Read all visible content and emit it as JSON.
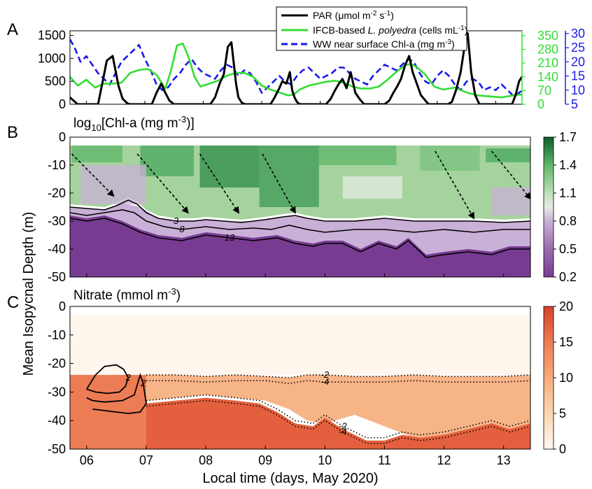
{
  "figure": {
    "panel_letters": [
      "A",
      "B",
      "C"
    ],
    "x_axis_label": "Local time (days, May 2020)",
    "y_axis_label": "Mean Isopycnal Depth (m)",
    "panel_b_title": "log",
    "panel_b_title_sub": "10",
    "panel_b_title_rest": "[Chl-a (mg m",
    "panel_b_title_sup": "-3",
    "panel_b_title_end": ")]",
    "panel_c_title": "Nitrate (mmol m",
    "panel_c_title_sup": "-3",
    "panel_c_title_end": ")"
  },
  "legend": {
    "par_label": "PAR (",
    "par_mu": "μ",
    "par_unit": "mol m",
    "par_sup1": "-2",
    "par_mid": " s",
    "par_sup2": "-1",
    "par_end": ")",
    "ifcb_label": "IFCB-based ",
    "ifcb_species": "L. polyedra",
    "ifcb_unit": " (cells mL",
    "ifcb_sup": "-1",
    "ifcb_end": ")",
    "ww_label": "WW near surface Chl-a (mg m",
    "ww_sup": "-3",
    "ww_end": ")"
  },
  "colors": {
    "par": "#000000",
    "ifcb": "#33dd33",
    "ww": "#1a1aee",
    "chl_low": "#773b92",
    "chl_high": "#0b5d2a",
    "nitrate_low": "#fff7ee",
    "nitrate_high": "#d6402a"
  },
  "chart_data": [
    {
      "id": "panel-A",
      "type": "line",
      "x_ticks": [
        "06",
        "07",
        "08",
        "09",
        "10",
        "11",
        "12",
        "13"
      ],
      "xlim": [
        5.72,
        13.45
      ],
      "y_left_ticks": [
        "0",
        "500",
        "1000",
        "1500"
      ],
      "ylim_left": [
        0,
        1600
      ],
      "y_right1_ticks": [
        "0",
        "70",
        "140",
        "210",
        "280",
        "350"
      ],
      "ylim_right1": [
        0,
        375
      ],
      "y_right2_ticks": [
        "5",
        "10",
        "15",
        "20",
        "25",
        "30"
      ],
      "ylim_right2": [
        5,
        31
      ],
      "series": [
        {
          "name": "PAR",
          "axis": "left",
          "x": [
            5.72,
            5.85,
            5.95,
            6.05,
            6.12,
            6.2,
            6.28,
            6.35,
            6.45,
            6.55,
            6.62,
            6.7,
            6.75,
            6.85,
            6.95,
            7.05,
            7.12,
            7.2,
            7.28,
            7.35,
            7.42,
            7.5,
            7.58,
            7.65,
            7.75,
            7.85,
            7.95,
            8.05,
            8.12,
            8.2,
            8.28,
            8.35,
            8.42,
            8.48,
            8.52,
            8.56,
            8.6,
            8.66,
            8.72,
            8.85,
            9.0,
            9.08,
            9.15,
            9.22,
            9.3,
            9.35,
            9.42,
            9.48,
            9.52,
            9.56,
            9.6,
            9.65,
            9.72,
            9.85,
            10.0,
            10.1,
            10.18,
            10.25,
            10.32,
            10.38,
            10.45,
            10.52,
            10.6,
            10.68,
            10.75,
            10.85,
            11.0,
            11.1,
            11.18,
            11.25,
            11.32,
            11.38,
            11.45,
            11.52,
            11.58,
            11.65,
            11.72,
            11.85,
            12.0,
            12.1,
            12.18,
            12.25,
            12.32,
            12.4,
            12.46,
            12.52,
            12.58,
            12.65,
            12.72,
            12.85,
            13.0,
            13.15,
            13.28,
            13.34,
            13.4,
            13.45
          ],
          "values": [
            150,
            0,
            0,
            0,
            0,
            0,
            500,
            950,
            1050,
            400,
            120,
            20,
            0,
            0,
            0,
            0,
            0,
            250,
            450,
            250,
            80,
            0,
            0,
            0,
            0,
            0,
            0,
            0,
            0,
            150,
            450,
            650,
            1250,
            1350,
            900,
            450,
            150,
            30,
            0,
            0,
            0,
            0,
            0,
            150,
            350,
            500,
            450,
            700,
            300,
            150,
            50,
            0,
            0,
            0,
            0,
            0,
            120,
            300,
            450,
            550,
            350,
            700,
            250,
            100,
            0,
            0,
            0,
            0,
            80,
            250,
            400,
            550,
            850,
            1050,
            700,
            450,
            200,
            0,
            0,
            0,
            0,
            50,
            300,
            700,
            1200,
            1550,
            700,
            200,
            0,
            0,
            0,
            0,
            0,
            200,
            500,
            600
          ]
        },
        {
          "name": "IFCB-based L. polyedra",
          "axis": "right1",
          "x": [
            5.72,
            5.85,
            6.0,
            6.15,
            6.3,
            6.45,
            6.6,
            6.75,
            6.9,
            7.05,
            7.2,
            7.35,
            7.45,
            7.55,
            7.65,
            7.75,
            7.85,
            7.95,
            8.1,
            8.25,
            8.4,
            8.55,
            8.7,
            8.85,
            9.0,
            9.15,
            9.3,
            9.45,
            9.55,
            9.65,
            9.8,
            9.95,
            10.1,
            10.25,
            10.4,
            10.55,
            10.7,
            10.85,
            11.0,
            11.15,
            11.3,
            11.45,
            11.55,
            11.65,
            11.8,
            11.95,
            12.1,
            12.3,
            12.5,
            12.7,
            12.9,
            13.1,
            13.3,
            13.45
          ],
          "values": [
            140,
            95,
            125,
            85,
            105,
            105,
            110,
            160,
            175,
            180,
            150,
            80,
            175,
            300,
            310,
            240,
            140,
            90,
            105,
            120,
            145,
            160,
            160,
            140,
            95,
            75,
            60,
            45,
            50,
            75,
            95,
            105,
            115,
            120,
            110,
            90,
            80,
            80,
            90,
            125,
            165,
            200,
            205,
            190,
            150,
            90,
            75,
            85,
            60,
            45,
            40,
            35,
            45,
            50
          ]
        },
        {
          "name": "WW near surface Chl-a",
          "axis": "right2",
          "x": [
            5.72,
            5.8,
            5.9,
            6.0,
            6.1,
            6.2,
            6.3,
            6.4,
            6.5,
            6.6,
            6.7,
            6.8,
            6.9,
            7.0,
            7.1,
            7.2,
            7.3,
            7.4,
            7.5,
            7.6,
            7.7,
            7.8,
            7.9,
            8.0,
            8.1,
            8.2,
            8.3,
            8.4,
            8.5,
            8.6,
            8.7,
            8.8,
            8.9,
            9.0,
            9.1,
            9.2,
            9.3,
            9.4,
            9.5,
            9.6,
            9.7,
            9.8,
            9.9,
            10.0,
            10.1,
            10.2,
            10.3,
            10.4,
            10.5,
            10.6,
            10.7,
            10.8,
            10.9,
            11.0,
            11.1,
            11.2,
            11.3,
            11.4,
            11.5,
            11.6,
            11.7,
            11.8,
            11.9,
            12.0,
            12.1,
            12.2,
            12.3,
            12.4,
            12.5,
            12.6,
            12.7,
            12.8,
            12.9,
            13.0,
            13.1,
            13.2,
            13.3,
            13.4,
            13.45
          ],
          "values": [
            28,
            25,
            20,
            22,
            19,
            16,
            14,
            12,
            16,
            20,
            22,
            24,
            26,
            21,
            17,
            12,
            10,
            11,
            14,
            16,
            19,
            21,
            18,
            16,
            15,
            14,
            17,
            19,
            18,
            15,
            17,
            16,
            13,
            9,
            11,
            13,
            15,
            13,
            12,
            15,
            17,
            18,
            16,
            14,
            15,
            16,
            18,
            18,
            16,
            14,
            13,
            12,
            15,
            17,
            19,
            18,
            17,
            19,
            21,
            20,
            16,
            13,
            12,
            15,
            17,
            15,
            12,
            10,
            13,
            14,
            13,
            10,
            11,
            10,
            12,
            10,
            8,
            9,
            10
          ]
        }
      ]
    },
    {
      "id": "panel-B",
      "type": "heatmap",
      "title": "log10[Chl-a (mg m-3)]",
      "x_ticks": [
        "06",
        "07",
        "08",
        "09",
        "10",
        "11",
        "12",
        "13"
      ],
      "y_ticks": [
        "0",
        "-10",
        "-20",
        "-30",
        "-40",
        "-50"
      ],
      "ylim": [
        -50,
        0
      ],
      "colorbar_ticks": [
        "1.7",
        "1.4",
        "1.1",
        "0.8",
        "0.5",
        "0.2"
      ],
      "clim": [
        0.2,
        1.7
      ],
      "contour_levels": [
        "3",
        "8",
        "13"
      ],
      "contours": [
        {
          "label": "3",
          "x": [
            5.72,
            6.0,
            6.3,
            6.5,
            6.7,
            6.85,
            7.0,
            7.2,
            7.5,
            7.8,
            8.0,
            8.3,
            8.6,
            9.0,
            9.3,
            9.5,
            9.7,
            10.0,
            10.5,
            11.0,
            11.5,
            12.0,
            12.5,
            13.0,
            13.45
          ],
          "y": [
            -25,
            -25.5,
            -26,
            -24.5,
            -22.5,
            -24,
            -27,
            -29,
            -30,
            -30,
            -29.5,
            -30,
            -30.5,
            -29.5,
            -28.5,
            -28,
            -29,
            -30,
            -30,
            -29,
            -30,
            -30,
            -30,
            -30.5,
            -30
          ]
        },
        {
          "label": "8",
          "x": [
            5.72,
            6.0,
            6.3,
            6.6,
            6.8,
            7.0,
            7.3,
            7.6,
            8.0,
            8.4,
            8.8,
            9.1,
            9.4,
            9.7,
            10.0,
            10.5,
            11.0,
            11.5,
            12.0,
            12.5,
            13.0,
            13.45
          ],
          "y": [
            -27,
            -28,
            -27,
            -26,
            -27,
            -30,
            -32,
            -33,
            -32,
            -33,
            -32.5,
            -33,
            -31.5,
            -33,
            -34,
            -33,
            -33,
            -34,
            -33,
            -34,
            -33,
            -33
          ]
        },
        {
          "label": "13",
          "x": [
            5.72,
            6.0,
            6.3,
            6.6,
            6.9,
            7.2,
            7.6,
            8.0,
            8.4,
            8.8,
            9.2,
            9.5,
            9.8,
            10.0,
            10.3,
            10.6,
            10.9,
            11.2,
            11.4,
            11.7,
            12.0,
            12.4,
            12.8,
            13.1,
            13.45
          ],
          "y": [
            -29,
            -30,
            -29,
            -31,
            -34,
            -36,
            -37,
            -35,
            -36,
            -37,
            -36,
            -38,
            -39,
            -38,
            -38,
            -41,
            -38,
            -40,
            -37,
            -43,
            -42,
            -41,
            -42,
            -40,
            -40
          ]
        }
      ],
      "arrows": [
        {
          "x": [
            5.75,
            6.45
          ],
          "y": [
            -6,
            -21
          ]
        },
        {
          "x": [
            6.85,
            7.7
          ],
          "y": [
            -6,
            -27
          ]
        },
        {
          "x": [
            7.9,
            8.55
          ],
          "y": [
            -6,
            -27
          ]
        },
        {
          "x": [
            8.95,
            9.5
          ],
          "y": [
            -6,
            -27
          ]
        },
        {
          "x": [
            11.85,
            12.5
          ],
          "y": [
            -5,
            -29
          ]
        },
        {
          "x": [
            12.8,
            13.45
          ],
          "y": [
            -5,
            -22
          ]
        }
      ]
    },
    {
      "id": "panel-C",
      "type": "heatmap",
      "title": "Nitrate (mmol m-3)",
      "x_ticks": [
        "06",
        "07",
        "08",
        "09",
        "10",
        "11",
        "12",
        "13"
      ],
      "y_ticks": [
        "0",
        "-10",
        "-20",
        "-30",
        "-40",
        "-50"
      ],
      "ylim": [
        -50,
        0
      ],
      "colorbar_ticks": [
        "20",
        "15",
        "10",
        "5",
        "0"
      ],
      "clim": [
        0,
        20
      ],
      "contour_levels": [
        "-4",
        "-2",
        "2",
        "4"
      ],
      "contours": [
        {
          "label": "2",
          "style": "solid",
          "x": [
            6.0,
            6.15,
            6.3,
            6.5,
            6.62,
            6.7,
            6.65,
            6.55,
            6.35,
            6.15,
            6.0
          ],
          "y": [
            -29,
            -24,
            -21,
            -20.5,
            -22,
            -25,
            -28,
            -30,
            -30.5,
            -30,
            -29
          ]
        },
        {
          "label": "2",
          "style": "solid",
          "x": [
            6.1,
            6.3,
            6.5,
            6.7,
            6.9,
            7.0,
            6.95,
            6.9,
            6.8,
            6.6,
            6.3,
            6.1,
            6.0
          ],
          "y": [
            -36,
            -36.5,
            -37,
            -37.5,
            -37,
            -34,
            -27,
            -24,
            -31,
            -33,
            -33.5,
            -33,
            -32
          ]
        },
        {
          "label": "-2",
          "style": "dotted",
          "x": [
            7.0,
            7.5,
            8.0,
            8.5,
            9.0,
            9.4,
            9.7,
            10.0,
            10.5,
            11.0,
            11.5,
            12.0,
            12.5,
            13.0,
            13.45
          ],
          "y": [
            -24,
            -24,
            -24.5,
            -24,
            -24.5,
            -25,
            -24,
            -24,
            -24.5,
            -24.5,
            -24,
            -24.5,
            -24.5,
            -24.5,
            -24
          ]
        },
        {
          "label": "-4",
          "style": "dotted",
          "x": [
            7.0,
            7.5,
            8.0,
            8.5,
            9.0,
            9.4,
            9.7,
            10.0,
            10.5,
            11.0,
            11.5,
            12.0,
            12.5,
            13.0,
            13.45
          ],
          "y": [
            -26,
            -26,
            -26.5,
            -26,
            -26,
            -27,
            -26,
            -26.5,
            -26.5,
            -26.5,
            -26,
            -26.5,
            -26.5,
            -26.5,
            -26
          ]
        },
        {
          "label": "-2",
          "style": "dotted",
          "x": [
            7.0,
            7.5,
            8.0,
            8.5,
            8.9,
            9.2,
            9.5,
            9.8,
            10.0,
            10.3,
            10.7,
            11.0,
            11.3,
            11.6,
            12.0,
            12.4,
            12.8,
            13.1,
            13.45
          ],
          "y": [
            -33,
            -32,
            -31,
            -32,
            -33,
            -36,
            -40,
            -41,
            -38,
            -42,
            -46,
            -46,
            -44,
            -45,
            -44,
            -42,
            -40,
            -42,
            -40
          ]
        },
        {
          "label": "-4",
          "style": "dotted",
          "x": [
            7.0,
            7.5,
            8.0,
            8.5,
            8.9,
            9.2,
            9.5,
            9.8,
            10.0,
            10.3,
            10.7,
            11.0,
            11.3,
            11.6,
            12.0,
            12.4,
            12.8,
            13.1,
            13.45
          ],
          "y": [
            -35,
            -34,
            -33,
            -34,
            -35,
            -38,
            -42,
            -43,
            -40,
            -44,
            -48,
            -48,
            -46,
            -47,
            -46,
            -44,
            -42,
            -44,
            -42
          ]
        }
      ]
    }
  ]
}
